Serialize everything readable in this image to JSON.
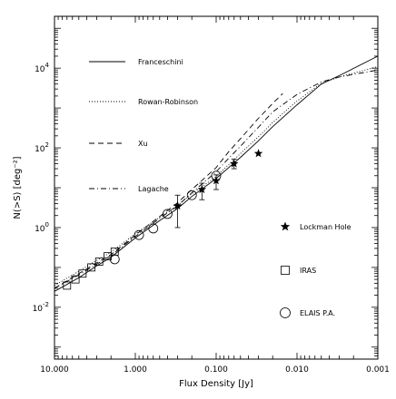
{
  "chart_data": {
    "type": "line",
    "xlabel": "Flux Density [Jy]",
    "ylabel": "N(>S) [deg⁻²]",
    "xlim": [
      10.0,
      0.001
    ],
    "ylim": [
      0.0005,
      200000
    ],
    "xscale": "log",
    "yscale": "log",
    "x_inverted": true,
    "grid": false,
    "legend_location": "left and right inside panel",
    "x_tick_labels": [
      "10.000",
      "1.000",
      "0.100",
      "0.010",
      "0.001"
    ],
    "x_tick_values": [
      10,
      1,
      0.1,
      0.01,
      0.001
    ],
    "y_tick_labels": [
      {
        "base": "10",
        "exp": "4",
        "value": 10000
      },
      {
        "base": "10",
        "exp": "2",
        "value": 100
      },
      {
        "base": "10",
        "exp": "0",
        "value": 1
      },
      {
        "base": "10",
        "exp": "-2",
        "value": 0.01
      }
    ],
    "series": [
      {
        "name": "Franceschini",
        "kind": "line",
        "style": "solid",
        "x": [
          10,
          5,
          3,
          2,
          1,
          0.5,
          0.3,
          0.2,
          0.1,
          0.07,
          0.05,
          0.03,
          0.02,
          0.01,
          0.005,
          0.003,
          0.001
        ],
        "y": [
          0.025,
          0.055,
          0.11,
          0.18,
          0.55,
          1.5,
          3.0,
          6.0,
          17,
          32,
          58,
          150,
          340,
          1200,
          4000,
          6500,
          20000
        ]
      },
      {
        "name": "Rowan-Robinson",
        "kind": "line",
        "style": "dotted",
        "x": [
          10,
          5,
          3,
          2,
          1,
          0.5,
          0.3,
          0.2,
          0.1,
          0.07,
          0.05,
          0.03,
          0.02,
          0.01,
          0.005,
          0.003,
          0.001
        ],
        "y": [
          0.035,
          0.08,
          0.15,
          0.24,
          0.7,
          1.8,
          3.6,
          7.0,
          19,
          38,
          72,
          190,
          430,
          1500,
          4200,
          6000,
          11000
        ]
      },
      {
        "name": "Xu",
        "kind": "line",
        "style": "dashed",
        "x": [
          10,
          5,
          3,
          2,
          1,
          0.5,
          0.3,
          0.2,
          0.1,
          0.07,
          0.05,
          0.03,
          0.02,
          0.015
        ],
        "y": [
          0.03,
          0.07,
          0.13,
          0.21,
          0.65,
          1.9,
          4.2,
          9.0,
          32,
          80,
          170,
          550,
          1300,
          2300
        ]
      },
      {
        "name": "Lagache",
        "kind": "line",
        "style": "dashdot",
        "x": [
          10,
          5,
          3,
          2,
          1,
          0.5,
          0.3,
          0.2,
          0.1,
          0.07,
          0.05,
          0.03,
          0.02,
          0.01,
          0.005,
          0.003,
          0.001
        ],
        "y": [
          0.03,
          0.065,
          0.12,
          0.2,
          0.6,
          1.7,
          3.5,
          7.5,
          25,
          55,
          110,
          330,
          800,
          2200,
          4500,
          6000,
          9000
        ]
      },
      {
        "name": "Lockman Hole",
        "kind": "markers",
        "marker": "star",
        "x": [
          0.3,
          0.15,
          0.1,
          0.06,
          0.03
        ],
        "y": [
          3.5,
          9.0,
          15.0,
          40.0,
          72.0
        ],
        "yerr_low": [
          2.5,
          4.0,
          6.0,
          10.0,
          0.0
        ],
        "yerr_high": [
          3.0,
          4.0,
          6.0,
          12.0,
          0.0
        ]
      },
      {
        "name": "IRAS",
        "kind": "markers",
        "marker": "square",
        "x": [
          7.0,
          5.5,
          4.5,
          3.5,
          2.8,
          2.2,
          1.8
        ],
        "y": [
          0.035,
          0.05,
          0.07,
          0.1,
          0.14,
          0.19,
          0.25
        ]
      },
      {
        "name": "ELAIS P.A.",
        "kind": "markers",
        "marker": "circle",
        "x": [
          1.8,
          0.9,
          0.6,
          0.4,
          0.2,
          0.1
        ],
        "y": [
          0.16,
          0.65,
          0.95,
          2.2,
          6.5,
          20.0
        ]
      }
    ]
  }
}
